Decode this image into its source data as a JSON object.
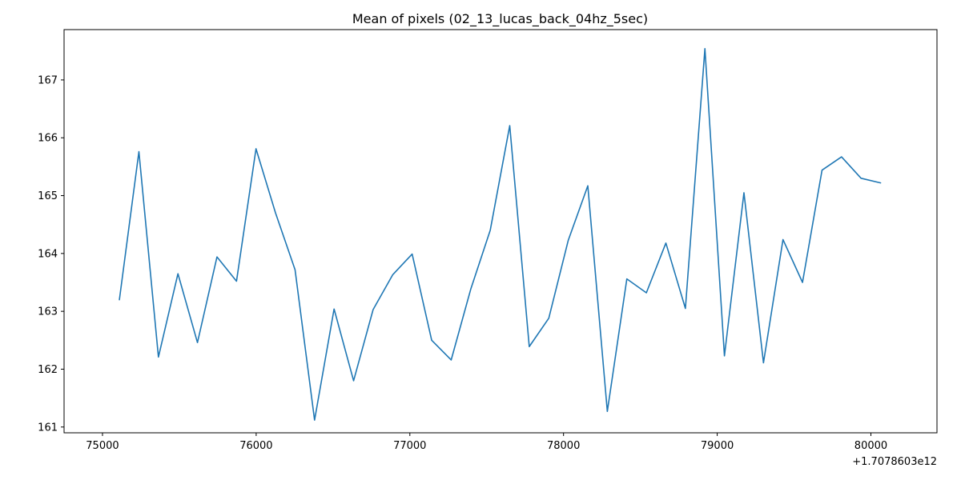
{
  "chart_data": {
    "type": "line",
    "title": "Mean of pixels (02_13_lucas_back_04hz_5sec)",
    "xlabel": "",
    "ylabel": "",
    "x_offset_label": "+1.7078603e12",
    "xlim": [
      74750,
      80430
    ],
    "ylim": [
      160.9,
      167.87
    ],
    "xticks": [
      75000,
      76000,
      77000,
      78000,
      79000,
      80000
    ],
    "yticks": [
      161,
      162,
      163,
      164,
      165,
      166,
      167
    ],
    "grid": false,
    "legend": "none",
    "series": [
      {
        "color": "#1f77b4",
        "x": [
          75110,
          75237,
          75364,
          75491,
          75618,
          75745,
          75872,
          75999,
          76126,
          76253,
          76380,
          76507,
          76634,
          76761,
          76888,
          77015,
          77142,
          77269,
          77396,
          77523,
          77650,
          77777,
          77904,
          78031,
          78158,
          78285,
          78412,
          78539,
          78666,
          78793,
          78920,
          79047,
          79174,
          79301,
          79428,
          79555,
          79682,
          79809,
          79936,
          80063
        ],
        "y": [
          163.2,
          165.76,
          162.21,
          163.65,
          162.46,
          163.94,
          163.52,
          165.81,
          164.7,
          163.72,
          161.12,
          163.04,
          161.8,
          163.03,
          163.63,
          163.99,
          162.5,
          162.16,
          163.38,
          164.4,
          166.21,
          162.39,
          162.88,
          164.23,
          165.17,
          161.27,
          163.56,
          163.32,
          164.18,
          163.05,
          167.54,
          162.23,
          165.05,
          162.11,
          164.24,
          163.5,
          165.44,
          165.67,
          165.3,
          165.22
        ]
      }
    ]
  }
}
